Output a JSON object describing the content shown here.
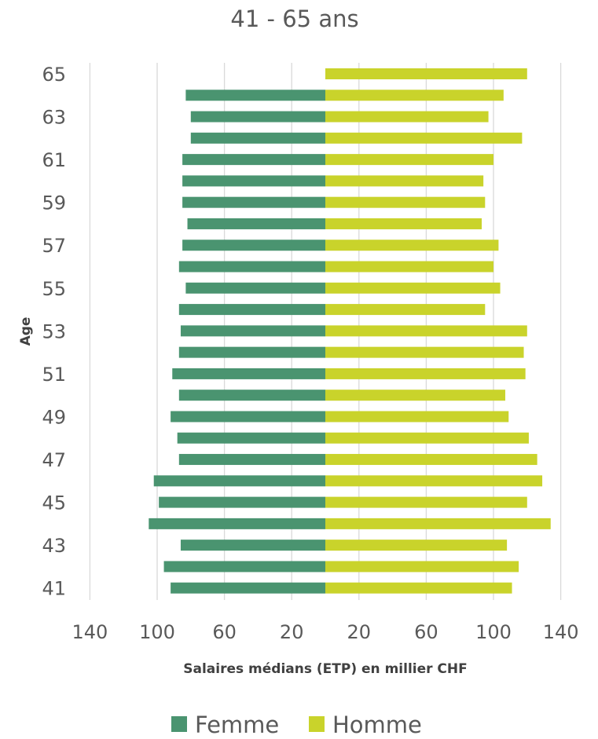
{
  "chart_data": {
    "type": "bar",
    "orientation": "horizontal-butterfly",
    "title": "41 - 65 ans",
    "xlabel": "Salaires médians (ETP) en millier CHF",
    "ylabel": "Age",
    "categories": [
      "41",
      "42",
      "43",
      "44",
      "45",
      "46",
      "47",
      "48",
      "49",
      "50",
      "51",
      "52",
      "53",
      "54",
      "55",
      "56",
      "57",
      "58",
      "59",
      "60",
      "61",
      "62",
      "63",
      "64",
      "65"
    ],
    "y_tick_labels": [
      "41",
      "43",
      "45",
      "47",
      "49",
      "51",
      "53",
      "55",
      "57",
      "59",
      "61",
      "63",
      "65"
    ],
    "x_tick_labels": [
      "140",
      "100",
      "60",
      "20",
      "20",
      "60",
      "100",
      "140"
    ],
    "xlim": [
      -140,
      140
    ],
    "grid": true,
    "legend_position": "bottom",
    "series": [
      {
        "name": "Femme",
        "color": "#4a9470",
        "side": "left",
        "values": [
          92,
          96,
          86,
          105,
          99,
          102,
          87,
          88,
          92,
          87,
          91,
          87,
          86,
          87,
          83,
          87,
          85,
          82,
          85,
          85,
          85,
          80,
          80,
          83,
          0
        ]
      },
      {
        "name": "Homme",
        "color": "#c9d32b",
        "side": "right",
        "values": [
          111,
          115,
          108,
          134,
          120,
          129,
          126,
          121,
          109,
          107,
          119,
          118,
          120,
          95,
          104,
          100,
          103,
          93,
          95,
          94,
          100,
          117,
          97,
          106,
          120
        ]
      }
    ]
  }
}
